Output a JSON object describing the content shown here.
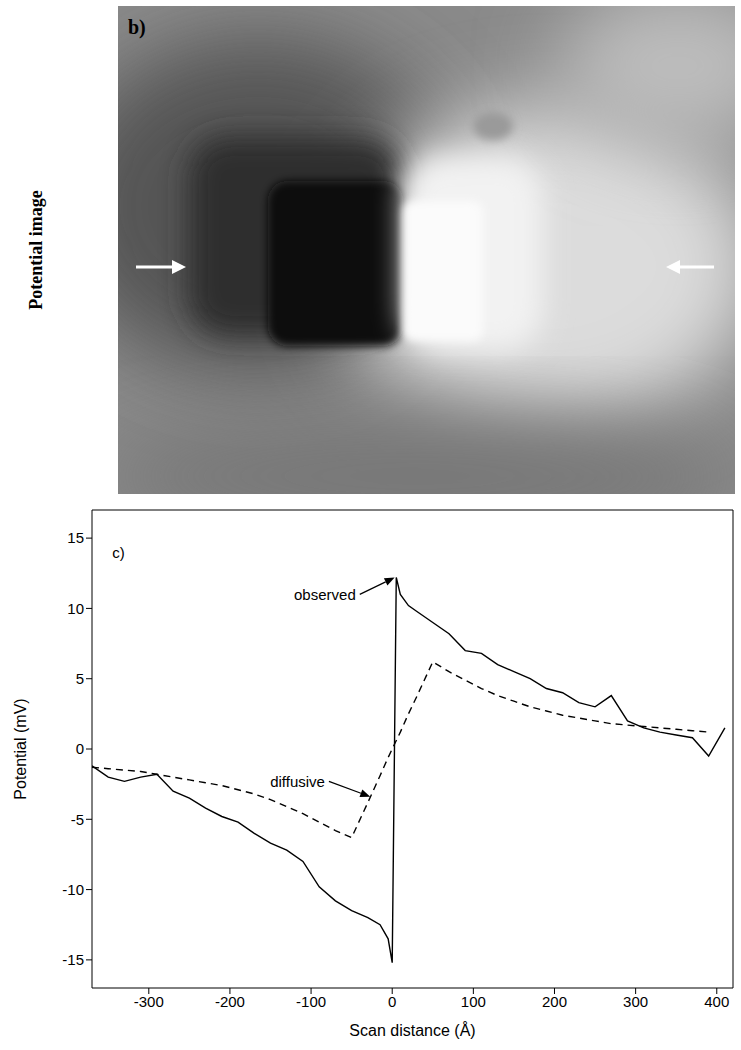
{
  "image": {
    "label": "b)",
    "title": "Potential image"
  },
  "chart_data": {
    "type": "line",
    "label": "c)",
    "x_label": "Scan distance (Å)",
    "y_label": "Potential (mV)",
    "x": [
      -370,
      -350,
      -330,
      -310,
      -290,
      -270,
      -250,
      -230,
      -210,
      -190,
      -170,
      -150,
      -130,
      -110,
      -90,
      -70,
      -50,
      -30,
      -15,
      -5,
      0,
      5,
      10,
      20,
      30,
      50,
      70,
      90,
      110,
      130,
      150,
      170,
      190,
      210,
      230,
      250,
      270,
      290,
      310,
      330,
      350,
      370,
      390,
      410
    ],
    "series": [
      {
        "name": "observed",
        "color": "#000000",
        "line_style": "solid",
        "values": [
          -1.2,
          -2.0,
          -2.3,
          -2.0,
          -1.8,
          -3.0,
          -3.5,
          -4.2,
          -4.8,
          -5.2,
          -6.0,
          -6.7,
          -7.2,
          -8.0,
          -9.8,
          -10.8,
          -11.5,
          -12.0,
          -12.5,
          -13.5,
          -15.2,
          12.2,
          11.0,
          10.2,
          9.8,
          9.0,
          8.2,
          7.0,
          6.8,
          6.0,
          5.5,
          5.0,
          4.3,
          4.0,
          3.3,
          3.0,
          3.8,
          2.0,
          1.5,
          1.2,
          1.0,
          0.8,
          -0.5,
          1.5
        ]
      },
      {
        "name": "diffusive",
        "color": "#000000",
        "line_style": "dashed",
        "values": [
          -1.3,
          -1.4,
          -1.5,
          -1.6,
          -1.8,
          -2.0,
          -2.2,
          -2.4,
          -2.6,
          -2.9,
          -3.2,
          -3.6,
          -4.1,
          -4.6,
          -5.2,
          -5.8,
          -6.3,
          -3.8,
          -1.9,
          -0.6,
          0.0,
          0.6,
          1.2,
          2.5,
          3.7,
          6.2,
          5.5,
          4.9,
          4.3,
          3.8,
          3.4,
          3.0,
          2.7,
          2.4,
          2.2,
          2.0,
          1.8,
          1.7,
          1.6,
          1.5,
          1.4,
          1.3,
          1.2,
          null
        ]
      }
    ],
    "xlim": [
      -370,
      420
    ],
    "xticks": [
      -300,
      -200,
      -100,
      0,
      100,
      200,
      300,
      400
    ],
    "ylim": [
      -17,
      17
    ],
    "yticks": [
      -15,
      -10,
      -5,
      0,
      5,
      10,
      15
    ],
    "annotations": [
      {
        "text": "observed",
        "series": "observed"
      },
      {
        "text": "diffusive",
        "series": "diffusive"
      }
    ]
  }
}
